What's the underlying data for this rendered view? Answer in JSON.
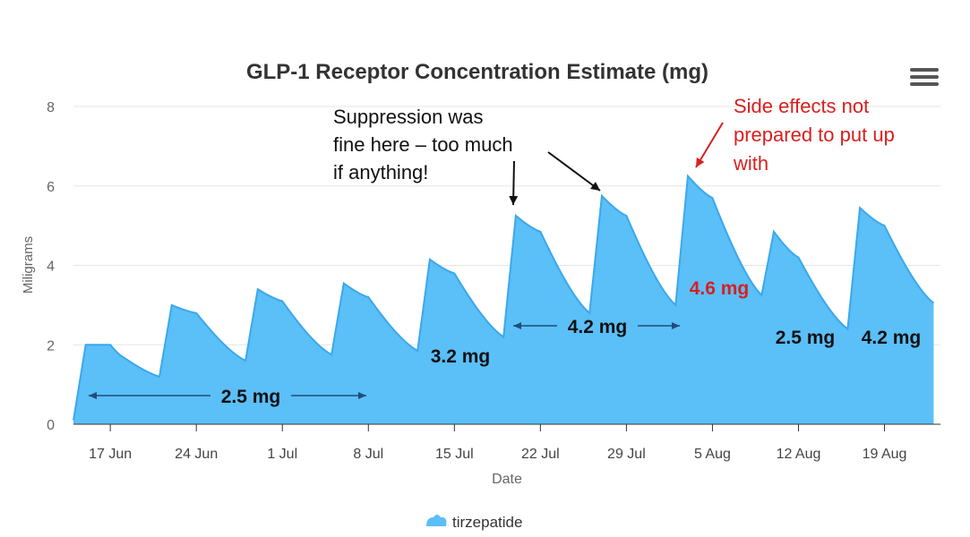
{
  "chart_data": {
    "type": "area",
    "title": "GLP-1 Receptor Concentration Estimate (mg)",
    "xlabel": "Date",
    "ylabel": "Miligrams",
    "ylim": [
      0,
      8
    ],
    "yticks": [
      0,
      2,
      4,
      6,
      8
    ],
    "xticks": [
      "17 Jun",
      "24 Jun",
      "1 Jul",
      "8 Jul",
      "15 Jul",
      "22 Jul",
      "29 Jul",
      "5 Aug",
      "12 Aug",
      "19 Aug"
    ],
    "grid": true,
    "legend_position": "bottom",
    "colors": {
      "fill": "#5bbff8",
      "line": "#3aa8ec",
      "arrow": "#1f4e79",
      "accent": "#d81f1f"
    },
    "series": [
      {
        "name": "tirzepatide",
        "points": [
          [
            "2025-06-14",
            0.1
          ],
          [
            "2025-06-15",
            2.0
          ],
          [
            "2025-06-17",
            2.0
          ],
          [
            "2025-06-18",
            1.7
          ],
          [
            "2025-06-21",
            1.2
          ],
          [
            "2025-06-22",
            3.0
          ],
          [
            "2025-06-24",
            2.8
          ],
          [
            "2025-06-28",
            1.6
          ],
          [
            "2025-06-29",
            3.4
          ],
          [
            "2025-07-01",
            3.1
          ],
          [
            "2025-07-05",
            1.75
          ],
          [
            "2025-07-06",
            3.55
          ],
          [
            "2025-07-08",
            3.2
          ],
          [
            "2025-07-12",
            1.85
          ],
          [
            "2025-07-13",
            4.15
          ],
          [
            "2025-07-15",
            3.8
          ],
          [
            "2025-07-19",
            2.2
          ],
          [
            "2025-07-20",
            5.25
          ],
          [
            "2025-07-22",
            4.85
          ],
          [
            "2025-07-26",
            2.8
          ],
          [
            "2025-07-27",
            5.75
          ],
          [
            "2025-07-29",
            5.25
          ],
          [
            "2025-08-02",
            3.0
          ],
          [
            "2025-08-03",
            6.25
          ],
          [
            "2025-08-05",
            5.7
          ],
          [
            "2025-08-09",
            3.25
          ],
          [
            "2025-08-10",
            4.85
          ],
          [
            "2025-08-12",
            4.2
          ],
          [
            "2025-08-16",
            2.4
          ],
          [
            "2025-08-17",
            5.45
          ],
          [
            "2025-08-19",
            5.0
          ],
          [
            "2025-08-23",
            3.05
          ]
        ]
      }
    ],
    "annotations": [
      {
        "text": "2.5 mg",
        "color": "#111111"
      },
      {
        "text": "3.2 mg",
        "color": "#111111"
      },
      {
        "text": "4.2 mg",
        "color": "#111111"
      },
      {
        "text": "4.6 mg",
        "color": "#d81f1f"
      },
      {
        "text": "2.5 mg",
        "color": "#111111"
      },
      {
        "text": "4.2 mg",
        "color": "#111111"
      }
    ],
    "callouts": [
      {
        "lines": [
          "Suppression was",
          "fine here – too much",
          "if anything!"
        ],
        "color": "#111111"
      },
      {
        "lines": [
          "Side effects not",
          "prepared to put up",
          "with"
        ],
        "color": "#d81f1f"
      }
    ]
  },
  "menu": {
    "icon": "hamburger-menu-icon"
  }
}
